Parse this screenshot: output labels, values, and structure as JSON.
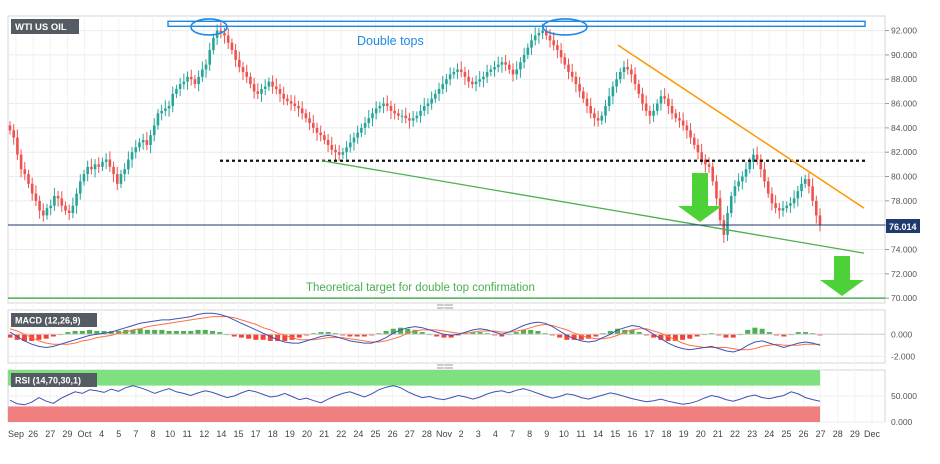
{
  "colors": {
    "up": "#26a69a",
    "down": "#ef5350",
    "resistance": "#1e88e5",
    "trendline_orange": "#ff9800",
    "trendline_green": "#4caf50",
    "target_line": "#4caf50",
    "support_dotted": "#111111",
    "current_price_line": "#1f3a6e",
    "macd_line": "#3f51b5",
    "signal_line": "#ff7043",
    "hist_pos": "#4caf50",
    "hist_neg": "#f44336",
    "rsi_line": "#3f51b5",
    "rsi_overbought": "#7ee07e",
    "rsi_oversold": "#f08080",
    "arrow": "#4cd137"
  },
  "chart_data": [
    {
      "id": "price",
      "type": "candlestick",
      "title": "WTI US OIL",
      "ylim": [
        69.6,
        93.2
      ],
      "yticks": [
        "92.000",
        "90.000",
        "88.000",
        "86.000",
        "84.000",
        "82.000",
        "80.000",
        "78.000",
        "76.000",
        "74.000",
        "72.000",
        "70.000"
      ],
      "current_price_label": "76.014",
      "current_price": 76.014,
      "close": [
        83.8,
        83.2,
        81.8,
        80.6,
        80.2,
        79.4,
        78.6,
        78.0,
        77.2,
        76.8,
        77.4,
        77.6,
        78.4,
        78.2,
        77.6,
        77.2,
        77.0,
        77.6,
        78.6,
        79.6,
        80.2,
        80.8,
        80.6,
        81.0,
        80.8,
        81.2,
        81.4,
        80.8,
        80.2,
        79.4,
        80.2,
        80.6,
        81.4,
        82.0,
        82.4,
        82.8,
        83.0,
        82.6,
        83.4,
        84.2,
        85.2,
        85.4,
        85.6,
        85.8,
        86.8,
        87.2,
        87.6,
        87.8,
        88.2,
        88.0,
        87.6,
        88.2,
        88.8,
        89.2,
        90.4,
        91.4,
        92.0,
        91.8,
        91.6,
        91.0,
        90.4,
        89.6,
        89.0,
        88.6,
        88.2,
        87.6,
        87.0,
        86.8,
        87.2,
        87.4,
        87.8,
        87.4,
        87.2,
        86.8,
        86.4,
        86.2,
        86.0,
        85.8,
        85.6,
        85.2,
        84.8,
        84.4,
        84.0,
        83.6,
        83.4,
        83.0,
        82.6,
        82.2,
        82.0,
        81.8,
        82.0,
        82.4,
        82.8,
        83.2,
        83.6,
        84.0,
        84.4,
        84.8,
        85.2,
        85.6,
        85.8,
        86.0,
        85.8,
        85.4,
        85.2,
        85.0,
        85.0,
        84.8,
        84.6,
        84.8,
        85.0,
        85.4,
        85.8,
        86.0,
        86.4,
        86.8,
        87.2,
        87.6,
        88.0,
        88.4,
        88.6,
        88.8,
        88.6,
        88.2,
        87.8,
        87.6,
        87.8,
        88.0,
        88.2,
        88.6,
        88.8,
        89.0,
        89.2,
        89.4,
        89.2,
        88.8,
        88.4,
        88.8,
        89.4,
        90.0,
        90.6,
        91.2,
        91.6,
        91.8,
        92.0,
        91.6,
        91.2,
        90.8,
        90.4,
        89.8,
        89.2,
        88.6,
        88.2,
        87.6,
        87.0,
        86.4,
        85.8,
        85.2,
        84.8,
        84.6,
        85.0,
        85.8,
        86.6,
        87.4,
        88.0,
        88.6,
        89.0,
        88.8,
        88.4,
        87.6,
        86.8,
        86.0,
        85.4,
        85.0,
        85.4,
        86.0,
        86.6,
        86.4,
        85.8,
        85.2,
        84.8,
        84.6,
        84.2,
        83.8,
        83.2,
        82.6,
        82.0,
        81.4,
        81.0,
        80.8,
        79.6,
        78.2,
        76.4,
        75.2,
        77.0,
        78.4,
        79.2,
        79.6,
        80.0,
        80.6,
        81.2,
        81.8,
        81.4,
        80.6,
        79.6,
        78.6,
        77.8,
        77.4,
        77.2,
        77.4,
        77.6,
        77.8,
        78.2,
        78.8,
        79.4,
        79.8,
        79.2,
        78.0,
        76.8,
        76.0
      ]
    },
    {
      "id": "macd",
      "type": "line",
      "title": "MACD (12,26,9)",
      "ylim": [
        -2.6,
        2.2
      ],
      "yticks": [
        "0.000",
        "-2.000"
      ],
      "series": [
        {
          "key": "macd",
          "values": [
            0.2,
            -0.2,
            -0.6,
            -0.9,
            -1.1,
            -1.2,
            -1.1,
            -0.9,
            -0.7,
            -0.5,
            -0.3,
            -0.1,
            0.0,
            0.1,
            0.2,
            0.4,
            0.6,
            0.8,
            1.0,
            1.1,
            1.2,
            1.3,
            1.3,
            1.4,
            1.5,
            1.6,
            1.8,
            1.9,
            1.9,
            1.8,
            1.6,
            1.3,
            1.0,
            0.7,
            0.4,
            0.1,
            -0.2,
            -0.5,
            -0.7,
            -0.8,
            -0.8,
            -0.6,
            -0.4,
            -0.2,
            -0.1,
            -0.2,
            -0.4,
            -0.6,
            -0.7,
            -0.8,
            -0.8,
            -0.6,
            -0.3,
            0.1,
            0.4,
            0.6,
            0.7,
            0.6,
            0.4,
            0.2,
            0.0,
            -0.1,
            0.0,
            0.2,
            0.4,
            0.5,
            0.4,
            0.2,
            0.0,
            0.2,
            0.5,
            0.8,
            1.0,
            1.1,
            1.0,
            0.7,
            0.3,
            -0.1,
            -0.4,
            -0.6,
            -0.7,
            -0.6,
            -0.3,
            0.0,
            0.4,
            0.6,
            0.8,
            0.7,
            0.4,
            0.0,
            -0.4,
            -0.8,
            -1.1,
            -1.3,
            -1.4,
            -1.3,
            -1.2,
            -1.1,
            -1.3,
            -1.5,
            -1.6,
            -1.4,
            -1.0,
            -0.7,
            -0.6,
            -0.8,
            -1.0,
            -1.2,
            -1.0,
            -0.8,
            -0.7,
            -0.8,
            -1.0
          ]
        },
        {
          "key": "signal",
          "values": [
            0.5,
            0.3,
            0.0,
            -0.3,
            -0.6,
            -0.8,
            -0.9,
            -0.9,
            -0.9,
            -0.8,
            -0.6,
            -0.5,
            -0.3,
            -0.2,
            -0.1,
            0.1,
            0.2,
            0.4,
            0.5,
            0.7,
            0.8,
            0.9,
            1.0,
            1.1,
            1.2,
            1.3,
            1.4,
            1.5,
            1.6,
            1.6,
            1.6,
            1.5,
            1.3,
            1.1,
            0.9,
            0.6,
            0.4,
            0.1,
            -0.1,
            -0.3,
            -0.5,
            -0.5,
            -0.5,
            -0.4,
            -0.3,
            -0.3,
            -0.3,
            -0.4,
            -0.5,
            -0.6,
            -0.7,
            -0.7,
            -0.6,
            -0.4,
            -0.2,
            0.1,
            0.3,
            0.4,
            0.4,
            0.4,
            0.3,
            0.2,
            0.1,
            0.1,
            0.2,
            0.3,
            0.3,
            0.3,
            0.2,
            0.2,
            0.3,
            0.4,
            0.6,
            0.8,
            0.9,
            0.8,
            0.6,
            0.4,
            0.1,
            -0.1,
            -0.3,
            -0.4,
            -0.4,
            -0.3,
            -0.1,
            0.2,
            0.4,
            0.5,
            0.5,
            0.3,
            0.1,
            -0.2,
            -0.5,
            -0.8,
            -1.0,
            -1.1,
            -1.2,
            -1.2,
            -1.2,
            -1.2,
            -1.3,
            -1.4,
            -1.4,
            -1.3,
            -1.1,
            -1.0,
            -0.9,
            -1.0,
            -1.0,
            -1.0,
            -0.9,
            -0.9,
            -0.9
          ]
        }
      ]
    },
    {
      "id": "rsi",
      "type": "line",
      "title": "RSI (14,70,30,1)",
      "ylim": [
        0,
        100
      ],
      "yticks": [
        "50.000",
        "0.000"
      ],
      "overbought": 70,
      "oversold": 30,
      "series": [
        {
          "key": "rsi",
          "values": [
            42,
            35,
            33,
            38,
            47,
            40,
            36,
            45,
            52,
            58,
            55,
            62,
            60,
            57,
            63,
            59,
            66,
            70,
            66,
            61,
            55,
            60,
            64,
            58,
            55,
            51,
            56,
            60,
            57,
            52,
            47,
            50,
            56,
            61,
            58,
            53,
            48,
            50,
            55,
            49,
            43,
            46,
            41,
            37,
            44,
            50,
            55,
            58,
            53,
            48,
            54,
            62,
            67,
            70,
            66,
            58,
            52,
            47,
            49,
            45,
            43,
            47,
            51,
            48,
            44,
            48,
            54,
            58,
            60,
            56,
            61,
            64,
            60,
            55,
            50,
            46,
            49,
            54,
            52,
            47,
            44,
            48,
            52,
            56,
            53,
            49,
            45,
            42,
            39,
            41,
            44,
            40,
            37,
            34,
            36,
            40,
            46,
            51,
            48,
            43,
            40,
            44,
            49,
            52,
            47,
            45,
            48,
            51,
            58,
            54,
            47,
            43,
            40
          ]
        }
      ]
    }
  ],
  "x_axis": {
    "labels": [
      "Sep",
      "26",
      "27",
      "29",
      "Oct",
      "4",
      "5",
      "7",
      "8",
      "10",
      "11",
      "12",
      "14",
      "15",
      "17",
      "18",
      "19",
      "20",
      "21",
      "22",
      "24",
      "25",
      "26",
      "27",
      "28",
      "Nov",
      "2",
      "3",
      "4",
      "7",
      "8",
      "9",
      "10",
      "11",
      "14",
      "15",
      "16",
      "17",
      "18",
      "19",
      "20",
      "21",
      "22",
      "23",
      "24",
      "25",
      "26",
      "27",
      "28",
      "29",
      "Dec"
    ]
  },
  "annotations": {
    "double_tops": "Double tops",
    "target": "Theoretical target for double top confirmation"
  }
}
